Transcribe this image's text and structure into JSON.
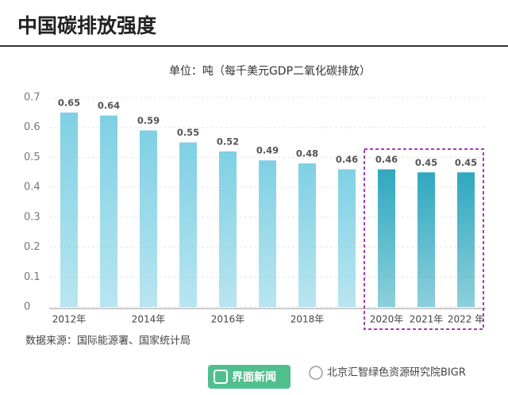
{
  "chart_data": {
    "type": "bar",
    "title": "中国碳排放强度",
    "subtitle": "单位：吨（每千美元GDP二氧化碳排放）",
    "categories": [
      "2012年",
      null,
      "2014年",
      null,
      "2016年",
      null,
      "2018年",
      null,
      "2020年",
      "2021年",
      "2022 年"
    ],
    "values": [
      0.65,
      0.64,
      0.59,
      0.55,
      0.52,
      0.49,
      0.48,
      0.46,
      0.46,
      0.45,
      0.45
    ],
    "color": "#7fd0e4",
    "highlight_color": "#2fa8bf",
    "highlight_range": [
      8,
      10
    ],
    "ylim": [
      0,
      0.7
    ],
    "yticks": [
      0,
      0.1,
      0.2,
      0.3,
      0.4,
      0.5,
      0.6,
      0.7
    ],
    "grid": true,
    "source": "数据来源：国际能源署、国家统计局",
    "footer_brand": "界面新闻",
    "footer_credit": "北京汇智绿色资源研究院BIGR"
  }
}
